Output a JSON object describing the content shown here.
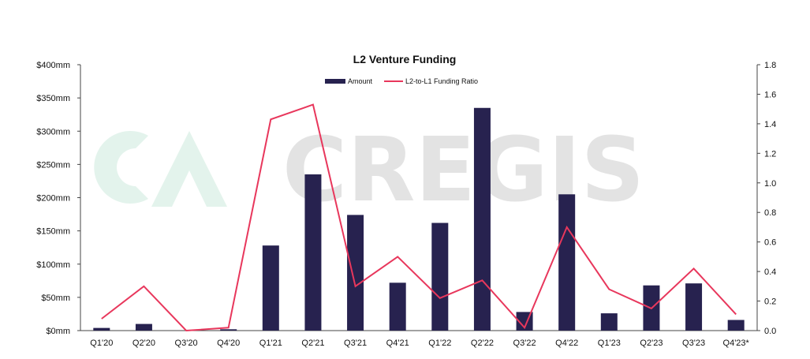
{
  "chart_data": {
    "type": "bar",
    "title": "L2 Venture Funding",
    "categories": [
      "Q1'20",
      "Q2'20",
      "Q3'20",
      "Q4'20",
      "Q1'21",
      "Q2'21",
      "Q3'21",
      "Q4'21",
      "Q1'22",
      "Q2'22",
      "Q3'22",
      "Q4'22",
      "Q1'23",
      "Q2'23",
      "Q3'23",
      "Q4'23*"
    ],
    "series": [
      {
        "name": "Amount",
        "type": "bar",
        "axis": "left",
        "color": "#27224f",
        "values": [
          4,
          10,
          0,
          2,
          128,
          235,
          174,
          72,
          162,
          335,
          28,
          205,
          26,
          68,
          71,
          16
        ]
      },
      {
        "name": "L2-to-L1 Funding Ratio",
        "type": "line",
        "axis": "right",
        "color": "#e8375c",
        "values": [
          0.08,
          0.3,
          0.0,
          0.02,
          1.43,
          1.53,
          0.3,
          0.5,
          0.22,
          0.34,
          0.02,
          0.7,
          0.28,
          0.15,
          0.42,
          0.11
        ]
      }
    ],
    "y_left": {
      "ylim": [
        0,
        400
      ],
      "ticks": [
        0,
        50,
        100,
        150,
        200,
        250,
        300,
        350,
        400
      ],
      "tick_labels": [
        "$0mm",
        "$50mm",
        "$100mm",
        "$150mm",
        "$200mm",
        "$250mm",
        "$300mm",
        "$350mm",
        "$400mm"
      ]
    },
    "y_right": {
      "ylim": [
        0,
        1.8
      ],
      "ticks": [
        0,
        0.2,
        0.4,
        0.6,
        0.8,
        1.0,
        1.2,
        1.4,
        1.6,
        1.8
      ],
      "tick_labels": [
        "0.0",
        "0.2",
        "0.4",
        "0.6",
        "0.8",
        "1.0",
        "1.2",
        "1.4",
        "1.6",
        "1.8"
      ]
    },
    "xlabel": "",
    "ylabel": "",
    "grid": false,
    "legend": "top-center"
  },
  "watermark": {
    "text": "CREGIS",
    "logo_color": "#e3f3ec",
    "text_color": "#e3e3e3"
  }
}
